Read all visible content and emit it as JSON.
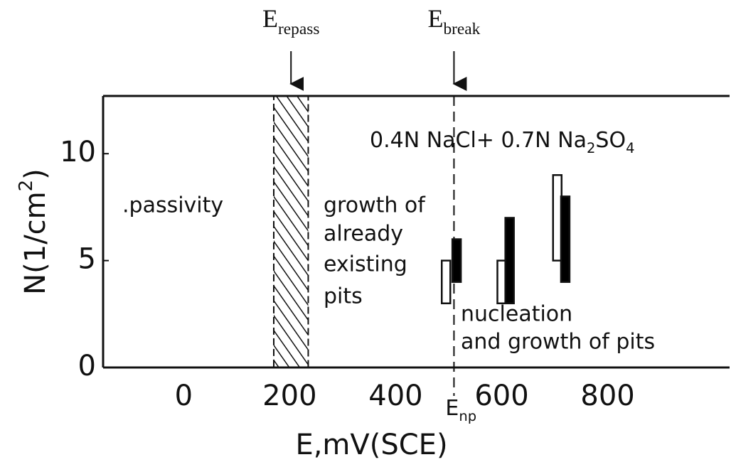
{
  "chart_data": {
    "type": "range_bar",
    "xlabel": "E,mV(SCE)",
    "ylabel": [
      "N(1/cm",
      "2",
      ")"
    ],
    "xlim": [
      -152,
      1030
    ],
    "ylim": [
      0,
      12.7
    ],
    "xticks": [
      0,
      200,
      400,
      600,
      800
    ],
    "yticks": [
      0,
      5,
      10
    ],
    "series": [
      {
        "color": "#ffffff",
        "x": [
          495,
          600,
          705
        ],
        "low": [
          3,
          3,
          5
        ],
        "high": [
          5,
          5,
          9
        ]
      },
      {
        "color": "#000000",
        "x": [
          515,
          615,
          720
        ],
        "low": [
          4,
          3,
          4
        ],
        "high": [
          6,
          7,
          8
        ]
      }
    ],
    "repass_band": [
      170,
      235
    ],
    "break_line": 510,
    "e_repass": [
      "E",
      "repass"
    ],
    "e_break": [
      "E",
      "break"
    ],
    "e_np": [
      "E",
      "np"
    ],
    "solution": [
      "0.4N NaCl+ 0.7N Na",
      "2",
      "SO",
      "4"
    ],
    "passivity": ".passivity",
    "growth": [
      "growth of",
      "already",
      "existing",
      "pits"
    ],
    "nucleation": [
      "nucleation",
      "and growth of pits"
    ]
  }
}
